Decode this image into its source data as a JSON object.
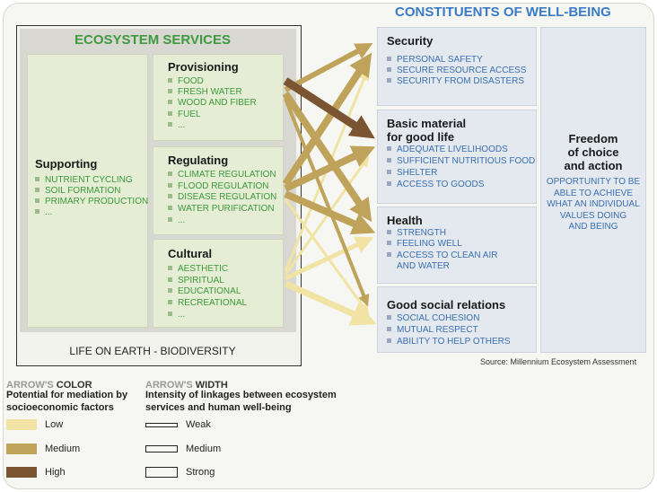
{
  "services": {
    "title": "ECOSYSTEM SERVICES",
    "supporting": {
      "heading": "Supporting",
      "items": [
        "NUTRIENT CYCLING",
        "SOIL FORMATION",
        "PRIMARY PRODUCTION",
        "..."
      ]
    },
    "provisioning": {
      "heading": "Provisioning",
      "items": [
        "FOOD",
        "FRESH WATER",
        "WOOD AND FIBER",
        "FUEL",
        "..."
      ]
    },
    "regulating": {
      "heading": "Regulating",
      "items": [
        "CLIMATE REGULATION",
        "FLOOD REGULATION",
        "DISEASE REGULATION",
        "WATER PURIFICATION",
        "..."
      ]
    },
    "cultural": {
      "heading": "Cultural",
      "items": [
        "AESTHETIC",
        "SPIRITUAL",
        "EDUCATIONAL",
        "RECREATIONAL",
        "..."
      ]
    },
    "footer": "LIFE ON EARTH - BIODIVERSITY"
  },
  "wellbeing": {
    "title": "CONSTITUENTS OF WELL-BEING",
    "security": {
      "heading": "Security",
      "items": [
        "PERSONAL SAFETY",
        "SECURE RESOURCE ACCESS",
        "SECURITY FROM DISASTERS"
      ]
    },
    "basic": {
      "heading_1": "Basic material",
      "heading_2": "for good life",
      "items": [
        "ADEQUATE LIVELIHOODS",
        "SUFFICIENT NUTRITIOUS FOOD",
        "SHELTER",
        "ACCESS TO GOODS"
      ]
    },
    "health": {
      "heading": "Health",
      "items": [
        "STRENGTH",
        "FEELING WELL",
        "ACCESS TO CLEAN AIR",
        "AND WATER"
      ]
    },
    "social": {
      "heading": "Good social relations",
      "items": [
        "SOCIAL COHESION",
        "MUTUAL RESPECT",
        "ABILITY TO HELP OTHERS"
      ]
    },
    "freedom": {
      "heading_1": "Freedom",
      "heading_2": "of choice",
      "heading_3": "and action",
      "desc": [
        "OPPORTUNITY TO BE",
        "ABLE TO ACHIEVE",
        "WHAT AN INDIVIDUAL",
        "VALUES DOING",
        "AND BEING"
      ]
    }
  },
  "source": "Source: Millennium Ecosystem Assessment",
  "legend": {
    "color_title_1": "ARROW'S",
    "color_title_2": "COLOR",
    "color_sub_1": "Potential for mediation by",
    "color_sub_2": "socioeconomic factors",
    "width_title_1": "ARROW'S",
    "width_title_2": "WIDTH",
    "width_sub_1": "Intensity of linkages between ecosystem",
    "width_sub_2": "services and human well-being",
    "low": "Low",
    "medium": "Medium",
    "high": "High",
    "weak": "Weak",
    "medium_w": "Medium",
    "strong": "Strong"
  },
  "colors": {
    "low": "#f1e3a4",
    "medium": "#bfa35a",
    "high": "#7b5532"
  }
}
